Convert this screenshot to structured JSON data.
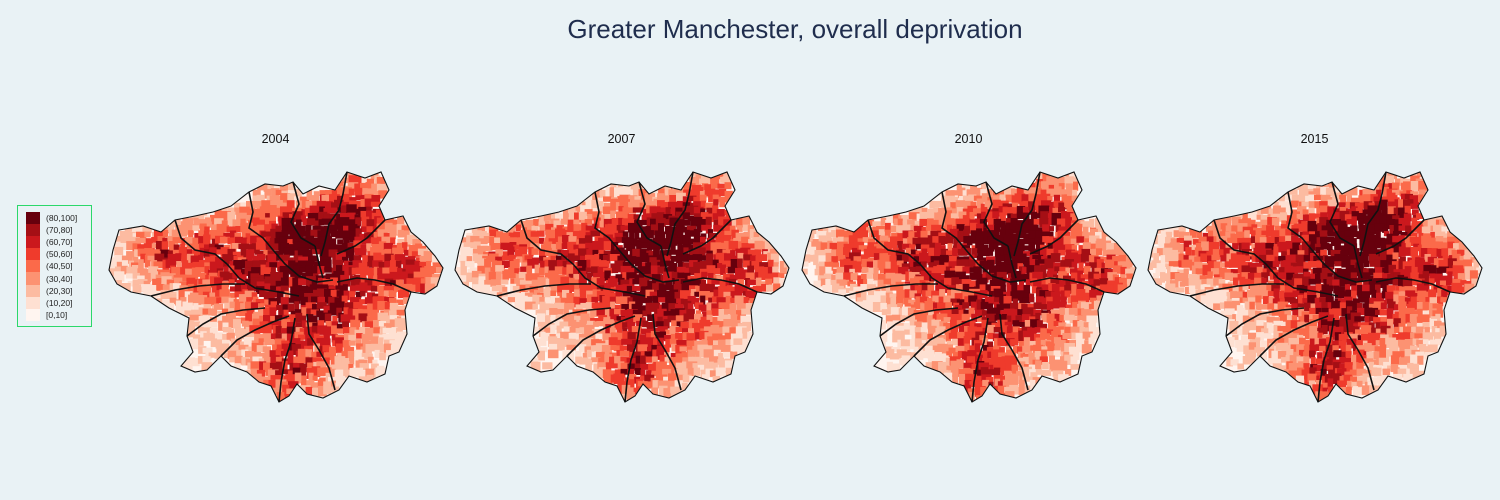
{
  "title": "Greater Manchester, overall deprivation",
  "legend": {
    "items": [
      {
        "label": "(80,100]",
        "color": "#67000d"
      },
      {
        "label": "(70,80]",
        "color": "#a50f15"
      },
      {
        "label": "(60,70]",
        "color": "#cb181d"
      },
      {
        "label": "(50,60]",
        "color": "#ef3b2c"
      },
      {
        "label": "(40,50]",
        "color": "#fb6a4a"
      },
      {
        "label": "(30,40]",
        "color": "#fc9272"
      },
      {
        "label": "(20,30]",
        "color": "#fcbba1"
      },
      {
        "label": "(10,20]",
        "color": "#fee0d2"
      },
      {
        "label": "[0,10]",
        "color": "#fff5f0"
      }
    ]
  },
  "panels": [
    {
      "year": "2004",
      "seed": 11
    },
    {
      "year": "2007",
      "seed": 23
    },
    {
      "year": "2010",
      "seed": 37
    },
    {
      "year": "2015",
      "seed": 51
    }
  ]
}
